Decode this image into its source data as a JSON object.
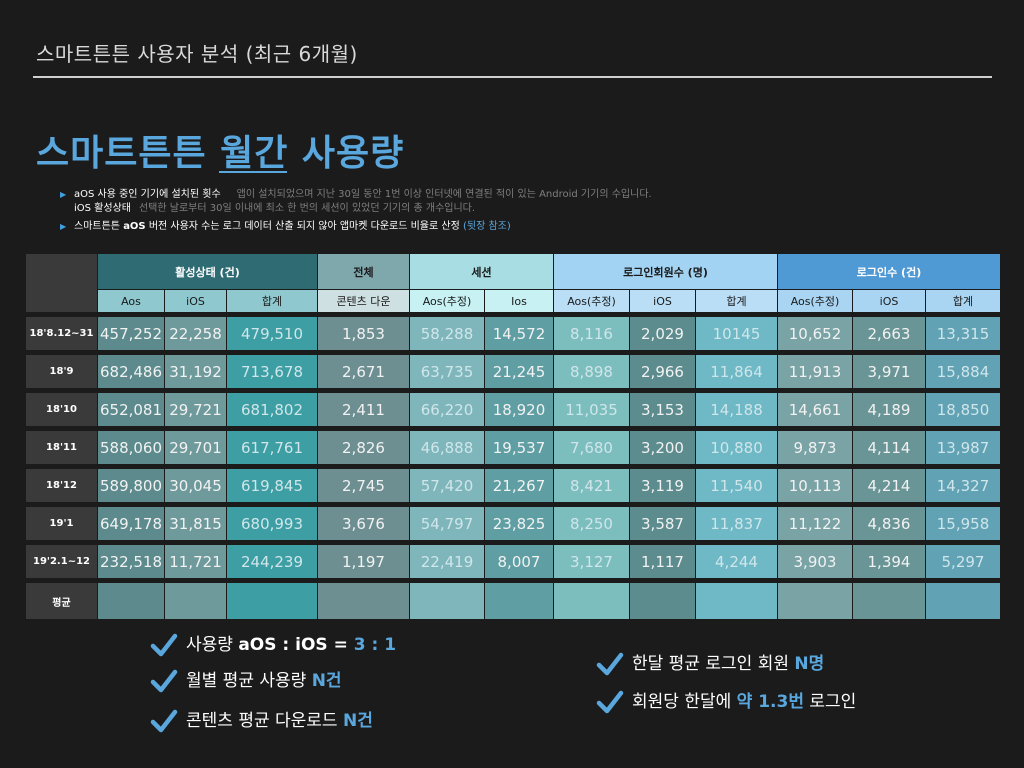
{
  "header": {
    "slide_title": "스마트튼튼 사용자 분석 (최근 6개월)",
    "main_title_part1": "스마트튼튼 ",
    "main_title_part2": "월간",
    "main_title_part3": " 사용량"
  },
  "bullets": {
    "b1_key": "aOS 사용 중인 기기에 설치된 횟수",
    "b1_desc": "앱이 설치되었으며 지난 30일 동안 1번 이상 인터넷에 연결된 적이 있는 Android 기기의 수입니다.",
    "b2_key": "iOS 활성상태",
    "b2_desc": "선택한 날로부터 30일 이내에 최소 한 번의 세션이 있었던 기기의 총 개수입니다.",
    "b3_pre": "스마트튼튼 ",
    "b3_bold": "aOS",
    "b3_mid": " 버전 사용자 수는 로그 데이터 산출 되지 않아 앱마켓 다운로드 비율로 산정 ",
    "b3_link": "(뒷장 참조)"
  },
  "table": {
    "groups": [
      "활성상태 (건)",
      "전체",
      "세션",
      "로그인회원수 (명)",
      "로그인수 (건)"
    ],
    "subheaders": [
      "Aos",
      "iOS",
      "합계",
      "콘텐츠 다운",
      "Aos(추정)",
      "Ios",
      "Aos(추정)",
      "iOS",
      "합계",
      "Aos(추정)",
      "iOS",
      "합계"
    ],
    "rows": [
      {
        "label": "18'8.12~31",
        "cells": [
          "457,252",
          "22,258",
          "479,510",
          "1,853",
          "58,288",
          "14,572",
          "8,116",
          "2,029",
          "10145",
          "10,652",
          "2,663",
          "13,315"
        ]
      },
      {
        "label": "18'9",
        "cells": [
          "682,486",
          "31,192",
          "713,678",
          "2,671",
          "63,735",
          "21,245",
          "8,898",
          "2,966",
          "11,864",
          "11,913",
          "3,971",
          "15,884"
        ]
      },
      {
        "label": "18'10",
        "cells": [
          "652,081",
          "29,721",
          "681,802",
          "2,411",
          "66,220",
          "18,920",
          "11,035",
          "3,153",
          "14,188",
          "14,661",
          "4,189",
          "18,850"
        ]
      },
      {
        "label": "18'11",
        "cells": [
          "588,060",
          "29,701",
          "617,761",
          "2,826",
          "46,888",
          "19,537",
          "7,680",
          "3,200",
          "10,880",
          "9,873",
          "4,114",
          "13,987"
        ]
      },
      {
        "label": "18'12",
        "cells": [
          "589,800",
          "30,045",
          "619,845",
          "2,745",
          "57,420",
          "21,267",
          "8,421",
          "3,119",
          "11,540",
          "10,113",
          "4,214",
          "14,327"
        ]
      },
      {
        "label": "19'1",
        "cells": [
          "649,178",
          "31,815",
          "680,993",
          "3,676",
          "54,797",
          "23,825",
          "8,250",
          "3,587",
          "11,837",
          "11,122",
          "4,836",
          "15,958"
        ]
      },
      {
        "label": "19'2.1~12",
        "cells": [
          "232,518",
          "11,721",
          "244,239",
          "1,197",
          "22,419",
          "8,007",
          "3,127",
          "1,117",
          "4,244",
          "3,903",
          "1,394",
          "5,297"
        ]
      }
    ],
    "avg_label": "평균"
  },
  "checks": {
    "c1_pre": "사용량  ",
    "c1_bold": "aOS : iOS = ",
    "c1_hl": "3 : 1",
    "c2_pre": "월별 평균 사용량 ",
    "c2_hl": "N건",
    "c3_pre": "콘텐츠 평균 다운로드 ",
    "c3_hl": "N건",
    "c4_pre": "한달 평균 로그인 회원 ",
    "c4_hl": "N명",
    "c5_pre": "회원당 한달에 ",
    "c5_hl": "약 1.3번",
    "c5_post": " 로그인"
  },
  "icons": {
    "bullet": "triangle-bullet-icon",
    "check": "checkmark-icon"
  },
  "colors": {
    "accent": "#5aa7dd",
    "background": "#1b1b1c"
  }
}
